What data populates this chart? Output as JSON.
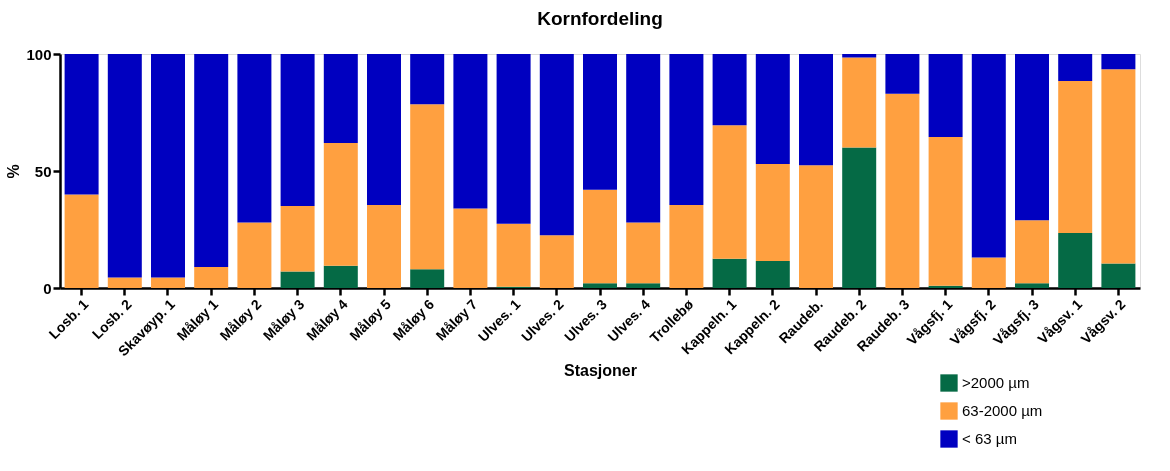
{
  "chart_data": {
    "type": "bar",
    "title": "Kornfordeling",
    "xlabel": "Stasjoner",
    "ylabel": "%",
    "categories": [
      "Losb. 1",
      "Losb. 2",
      "Skavøyp. 1",
      "Måløy 1",
      "Måløy 2",
      "Måløy 3",
      "Måløy 4",
      "Måløy 5",
      "Måløy 6",
      "Måløy 7",
      "Ulves. 1",
      "Ulves. 2",
      "Ulves. 3",
      "Ulves. 4",
      "Trollebø",
      "Kappeln. 1",
      "Kappeln. 2",
      "Raudeb.",
      "Raudeb. 2",
      "Raudeb. 3",
      "Vågsfj. 1",
      "Vågsfj. 2",
      "Vågsfj. 3",
      "Vågsv. 1",
      "Vågsv. 2"
    ],
    "stacked": true,
    "ylim": [
      0,
      100
    ],
    "yticks": [
      0,
      50,
      100
    ],
    "grid": false,
    "legend": "bottom right",
    "series": [
      {
        "name": ">2000 µm",
        "color": "#056a45",
        "values": [
          0,
          0,
          0,
          0,
          0,
          7,
          9.5,
          0,
          8,
          0,
          0.5,
          0,
          2,
          2,
          0,
          12.5,
          11.5,
          0,
          60,
          0,
          1,
          0,
          2,
          23.5,
          10.5
        ]
      },
      {
        "name": "63-2000 µm",
        "color": "#ffa040",
        "values": [
          40,
          4.5,
          4.5,
          9,
          28,
          28,
          52.5,
          35.5,
          70.5,
          34,
          27,
          22.5,
          40,
          26,
          35.5,
          57,
          41.5,
          52.5,
          38.5,
          83,
          63.5,
          13,
          27,
          65,
          83
        ]
      },
      {
        "name": "< 63 µm",
        "color": "#0000c0",
        "values": [
          60,
          95.5,
          95.5,
          91,
          72,
          65,
          38,
          64.5,
          21.5,
          66,
          72.5,
          77.5,
          58,
          72,
          64.5,
          30.5,
          47,
          47.5,
          1.5,
          17,
          35.5,
          87,
          71,
          11.5,
          6.5
        ]
      }
    ]
  }
}
